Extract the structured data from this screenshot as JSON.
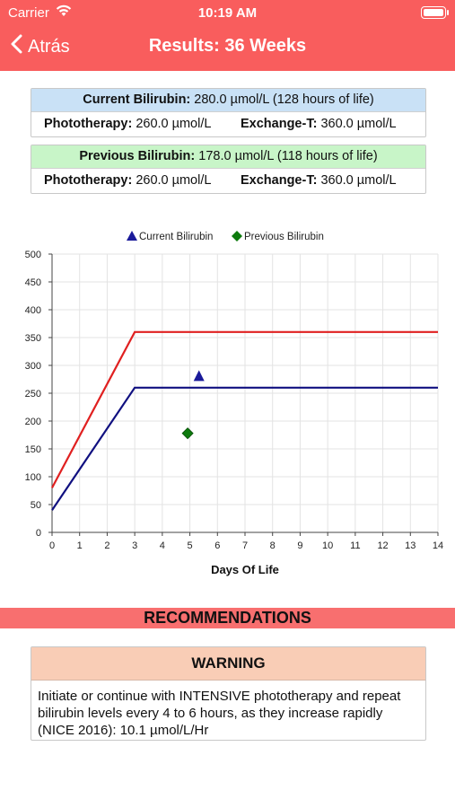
{
  "status": {
    "carrier": "Carrier",
    "time": "10:19 AM"
  },
  "nav": {
    "back_label": "Atrás",
    "title": "Results: 36 Weeks"
  },
  "current": {
    "label": "Current Bilirubin:",
    "value": "280.0 µmol/L (128 hours of life)",
    "header_color": "#c9e1f6",
    "phototherapy_label": "Phototherapy:",
    "phototherapy_value": "260.0 µmol/L",
    "exchange_label": "Exchange-T:",
    "exchange_value": "360.0 µmol/L"
  },
  "previous": {
    "label": "Previous Bilirubin:",
    "value": "178.0 µmol/L (118 hours of life)",
    "header_color": "#c8f5c8",
    "phototherapy_label": "Phototherapy:",
    "phototherapy_value": "260.0 µmol/L",
    "exchange_label": "Exchange-T:",
    "exchange_value": "360.0 µmol/L"
  },
  "chart_data": {
    "type": "line",
    "xlabel": "Days Of Life",
    "ylabel": "",
    "xlim": [
      0,
      14
    ],
    "ylim": [
      0,
      500
    ],
    "xticks": [
      0,
      1,
      2,
      3,
      4,
      5,
      6,
      7,
      8,
      9,
      10,
      11,
      12,
      13,
      14
    ],
    "yticks": [
      0,
      50,
      100,
      150,
      200,
      250,
      300,
      350,
      400,
      450,
      500
    ],
    "grid": true,
    "legend_position": "top",
    "series": [
      {
        "kind": "line",
        "color": "#e02020",
        "x": [
          0,
          3,
          14
        ],
        "y": [
          80,
          360,
          360
        ]
      },
      {
        "kind": "line",
        "color": "#101080",
        "x": [
          0,
          3,
          14
        ],
        "y": [
          40,
          260,
          260
        ]
      },
      {
        "kind": "point",
        "name": "Current Bilirubin",
        "marker": "triangle",
        "color": "#1a1a9a",
        "x": [
          5.33
        ],
        "y": [
          280
        ]
      },
      {
        "kind": "point",
        "name": "Previous Bilirubin",
        "marker": "diamond",
        "color": "#0d7a0d",
        "x": [
          4.92
        ],
        "y": [
          178
        ]
      }
    ]
  },
  "recommendations": {
    "title": "RECOMMENDATIONS",
    "warning_title": "WARNING",
    "warning_text": "Initiate or continue with INTENSIVE phototherapy and repeat bilirubin levels every 4 to 6 hours, as they increase rapidly (NICE 2016): 10.1 µmol/L/Hr"
  }
}
